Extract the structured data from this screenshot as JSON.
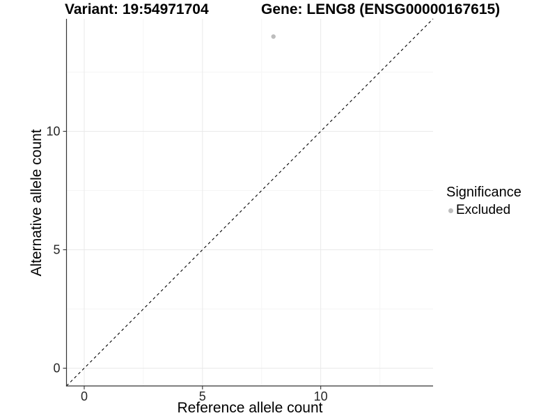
{
  "chart_data": {
    "type": "scatter",
    "titles": [
      "Variant: 19:54971704",
      "Gene: LENG8 (ENSG00000167615)"
    ],
    "xlabel": "Reference allele count",
    "ylabel": "Alternative allele count",
    "xlim": [
      -0.75,
      14.75
    ],
    "ylim": [
      -0.75,
      14.75
    ],
    "x_ticks": [
      0,
      5,
      10
    ],
    "y_ticks": [
      0,
      5,
      10
    ],
    "x_minor_ticks": [
      2.5,
      7.5,
      12.5
    ],
    "y_minor_ticks": [
      2.5,
      7.5,
      12.5
    ],
    "grid": "major+minor",
    "reference_line": {
      "type": "identity",
      "slope": 1,
      "intercept": 0,
      "linestyle": "dashed",
      "color": "#000000"
    },
    "series": [
      {
        "name": "Excluded",
        "color": "#bdbdbd",
        "points": [
          {
            "x": 8,
            "y": 14
          }
        ]
      }
    ],
    "legend": {
      "title": "Significance",
      "position": "right",
      "items": [
        {
          "label": "Excluded",
          "color": "#bdbdbd"
        }
      ]
    }
  },
  "colors": {
    "background": "#ffffff",
    "axis_line": "#333333",
    "tick_mark": "#333333",
    "tick_text": "#262626",
    "grid_major": "#e9e9e9",
    "grid_minor": "#f5f5f5"
  }
}
